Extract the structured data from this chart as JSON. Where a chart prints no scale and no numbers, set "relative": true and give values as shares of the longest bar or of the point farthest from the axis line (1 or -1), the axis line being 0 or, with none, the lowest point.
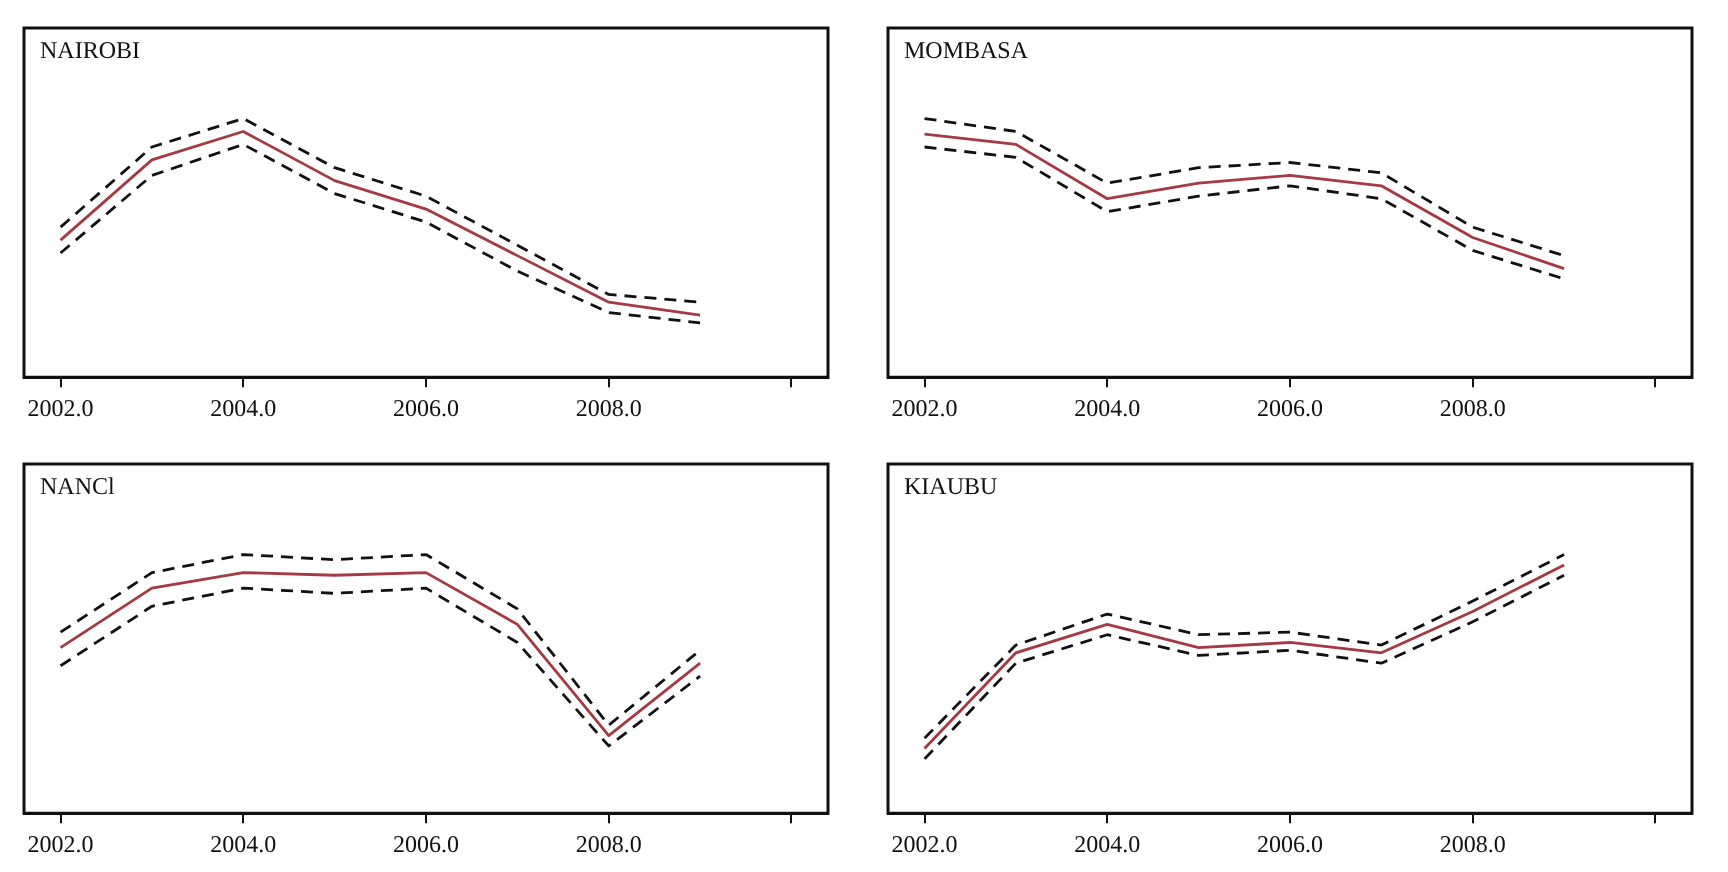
{
  "chart_data": [
    {
      "type": "line",
      "title": "NAIROBI",
      "relative": true,
      "x": [
        2002,
        2003,
        2004,
        2005,
        2006,
        2007,
        2008,
        2009
      ],
      "xlim": [
        2001.6,
        2010.4
      ],
      "xticks": [
        {
          "value": 2002,
          "label": "2002.0"
        },
        {
          "value": 2004,
          "label": "2004.0"
        },
        {
          "value": 2006,
          "label": "2006.0"
        },
        {
          "value": 2008,
          "label": "2008.0"
        },
        {
          "value": 2010,
          "label": null
        }
      ],
      "grid": false,
      "legend": false,
      "line_style": "solid",
      "series": [
        {
          "color": "#a33a44",
          "values": [
            0.53,
            0.84,
            0.95,
            0.76,
            0.65,
            0.47,
            0.29,
            0.24
          ]
        },
        {
          "color": "#111111",
          "line_style": "dashed",
          "values": [
            0.58,
            0.89,
            1,
            0.81,
            0.7,
            0.51,
            0.32,
            0.29
          ]
        },
        {
          "color": "#111111",
          "line_style": "dashed",
          "values": [
            0.48,
            0.78,
            0.9,
            0.71,
            0.6,
            0.41,
            0.25,
            0.21
          ]
        }
      ]
    },
    {
      "type": "line",
      "title": "MOMBASA",
      "relative": true,
      "x": [
        2002,
        2003,
        2004,
        2005,
        2006,
        2007,
        2008,
        2009
      ],
      "xlim": [
        2001.6,
        2010.4
      ],
      "xticks": [
        {
          "value": 2002,
          "label": "2002.0"
        },
        {
          "value": 2004,
          "label": "2004.0"
        },
        {
          "value": 2006,
          "label": "2006.0"
        },
        {
          "value": 2008,
          "label": "2008.0"
        },
        {
          "value": 2010,
          "label": null
        }
      ],
      "grid": false,
      "legend": false,
      "line_style": "solid",
      "series": [
        {
          "color": "#a33a44",
          "values": [
            0.94,
            0.9,
            0.69,
            0.75,
            0.78,
            0.74,
            0.54,
            0.42
          ]
        },
        {
          "color": "#111111",
          "line_style": "dashed",
          "values": [
            1,
            0.95,
            0.75,
            0.81,
            0.83,
            0.79,
            0.58,
            0.47
          ]
        },
        {
          "color": "#111111",
          "line_style": "dashed",
          "values": [
            0.89,
            0.85,
            0.64,
            0.7,
            0.74,
            0.69,
            0.49,
            0.38
          ]
        }
      ]
    },
    {
      "type": "line",
      "title": "NANCl",
      "relative": true,
      "x": [
        2002,
        2003,
        2004,
        2005,
        2006,
        2007,
        2008,
        2009
      ],
      "xlim": [
        2001.6,
        2010.4
      ],
      "xticks": [
        {
          "value": 2002,
          "label": "2002.0"
        },
        {
          "value": 2004,
          "label": "2004.0"
        },
        {
          "value": 2006,
          "label": "2006.0"
        },
        {
          "value": 2008,
          "label": "2008.0"
        },
        {
          "value": 2010,
          "label": null
        }
      ],
      "grid": false,
      "legend": false,
      "line_style": "solid",
      "series": [
        {
          "color": "#a33a44",
          "values": [
            0.64,
            0.87,
            0.93,
            0.92,
            0.93,
            0.73,
            0.3,
            0.58
          ]
        },
        {
          "color": "#111111",
          "line_style": "dashed",
          "values": [
            0.7,
            0.93,
            1,
            0.98,
            1,
            0.79,
            0.34,
            0.63
          ]
        },
        {
          "color": "#111111",
          "line_style": "dashed",
          "values": [
            0.57,
            0.8,
            0.87,
            0.85,
            0.87,
            0.66,
            0.26,
            0.53
          ]
        }
      ]
    },
    {
      "type": "line",
      "title": "KIAUBU",
      "relative": true,
      "x": [
        2002,
        2003,
        2004,
        2005,
        2006,
        2007,
        2008,
        2009
      ],
      "xlim": [
        2001.6,
        2010.4
      ],
      "xticks": [
        {
          "value": 2002,
          "label": "2002.0"
        },
        {
          "value": 2004,
          "label": "2004.0"
        },
        {
          "value": 2006,
          "label": "2006.0"
        },
        {
          "value": 2008,
          "label": "2008.0"
        },
        {
          "value": 2010,
          "label": null
        }
      ],
      "grid": false,
      "legend": false,
      "line_style": "solid",
      "series": [
        {
          "color": "#a33a44",
          "values": [
            0.25,
            0.62,
            0.73,
            0.64,
            0.66,
            0.62,
            0.78,
            0.96
          ]
        },
        {
          "color": "#111111",
          "line_style": "dashed",
          "values": [
            0.29,
            0.65,
            0.77,
            0.69,
            0.7,
            0.65,
            0.82,
            1
          ]
        },
        {
          "color": "#111111",
          "line_style": "dashed",
          "values": [
            0.21,
            0.58,
            0.69,
            0.61,
            0.63,
            0.58,
            0.74,
            0.92
          ]
        }
      ]
    }
  ]
}
